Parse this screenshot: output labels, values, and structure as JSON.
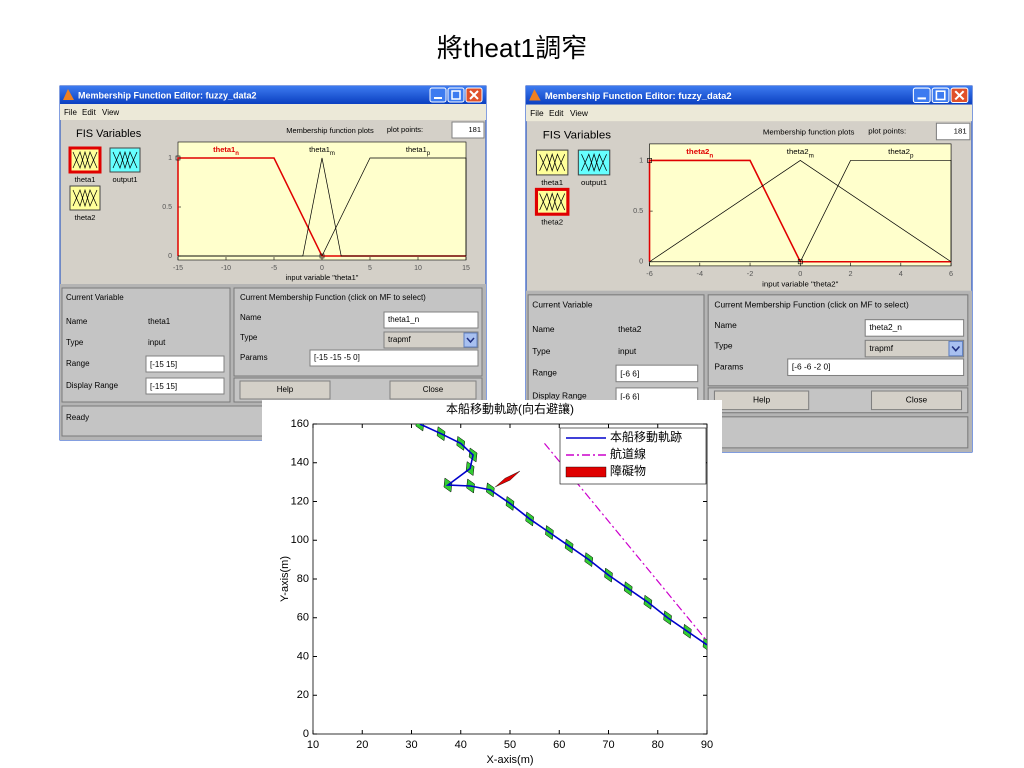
{
  "title": "將theat1調窄",
  "windows": [
    {
      "title": "Membership Function Editor: fuzzy_data2",
      "menu": [
        "File",
        "Edit",
        "View"
      ],
      "fis_variables_label": "FIS Variables",
      "variables": [
        "theta1",
        "output1",
        "theta2"
      ],
      "selected_variable": 0,
      "plot": {
        "heading": "Membership function plots",
        "plot_points_label": "plot points:",
        "plot_points": "181",
        "xlabel": "input variable \"theta1\"",
        "xlim": [
          -15,
          15
        ],
        "xticks": [
          -15,
          -10,
          -5,
          0,
          5,
          10,
          15
        ],
        "ylim": [
          0,
          1
        ],
        "yticks": [
          0,
          0.5,
          1
        ],
        "selected_mf": 0,
        "mfs": [
          {
            "name": {
              "base": "theta1",
              "sub": "n"
            },
            "type": "trapmf",
            "params": [
              -15,
              -15,
              -5,
              0
            ]
          },
          {
            "name": {
              "base": "theta1",
              "sub": "m"
            },
            "type": "trimf",
            "params": [
              -2,
              0,
              2
            ]
          },
          {
            "name": {
              "base": "theta1",
              "sub": "p"
            },
            "type": "trapmf",
            "params": [
              0,
              5,
              15,
              15
            ]
          }
        ]
      },
      "current_variable": {
        "heading": "Current Variable",
        "name_label": "Name",
        "name": "theta1",
        "type_label": "Type",
        "type": "input",
        "range_label": "Range",
        "range": "[-15 15]",
        "display_range_label": "Display Range",
        "display_range": "[-15 15]"
      },
      "current_mf": {
        "heading": "Current Membership Function (click on MF to select)",
        "name_label": "Name",
        "name": "theta1_n",
        "type_label": "Type",
        "type": "trapmf",
        "params_label": "Params",
        "params": "[-15 -15 -5 0]"
      },
      "buttons": [
        "Help",
        "Close"
      ],
      "status": "Ready"
    },
    {
      "title": "Membership Function Editor: fuzzy_data2",
      "menu": [
        "File",
        "Edit",
        "View"
      ],
      "fis_variables_label": "FIS Variables",
      "variables": [
        "theta1",
        "output1",
        "theta2"
      ],
      "selected_variable": 2,
      "plot": {
        "heading": "Membership function plots",
        "plot_points_label": "plot points:",
        "plot_points": "181",
        "xlabel": "input variable \"theta2\"",
        "xlim": [
          -6,
          6
        ],
        "xticks": [
          -6,
          -4,
          -2,
          0,
          2,
          4,
          6
        ],
        "ylim": [
          0,
          1
        ],
        "yticks": [
          0,
          0.5,
          1
        ],
        "selected_mf": 0,
        "mfs": [
          {
            "name": {
              "base": "theta2",
              "sub": "n"
            },
            "type": "trapmf",
            "params": [
              -6,
              -6,
              -2,
              0
            ]
          },
          {
            "name": {
              "base": "theta2",
              "sub": "m"
            },
            "type": "trimf",
            "params": [
              -6,
              0,
              6
            ]
          },
          {
            "name": {
              "base": "theta2",
              "sub": "p"
            },
            "type": "trapmf",
            "params": [
              0,
              2,
              6,
              6
            ]
          }
        ]
      },
      "current_variable": {
        "heading": "Current Variable",
        "name_label": "Name",
        "name": "theta2",
        "type_label": "Type",
        "type": "input",
        "range_label": "Range",
        "range": "[-6 6]",
        "display_range_label": "Display Range",
        "display_range": "[-6 6]"
      },
      "current_mf": {
        "heading": "Current Membership Function (click on MF to select)",
        "name_label": "Name",
        "name": "theta2_n",
        "type_label": "Type",
        "type": "trapmf",
        "params_label": "Params",
        "params": "[-6 -6 -2 0]"
      },
      "buttons": [
        "Help",
        "Close"
      ]
    }
  ],
  "chart_data": {
    "type": "line",
    "title": "本船移動軌跡(向右避讓)",
    "xlabel": "X-axis(m)",
    "ylabel": "Y-axis(m)",
    "xlim": [
      10,
      90
    ],
    "xticks": [
      10,
      20,
      30,
      40,
      50,
      60,
      70,
      80,
      90
    ],
    "ylim": [
      0,
      160
    ],
    "yticks": [
      0,
      20,
      40,
      60,
      80,
      100,
      120,
      140,
      160
    ],
    "legend": "upper right",
    "series": [
      {
        "name": "本船移動軌跡",
        "color": "#0000cc",
        "style": "solid",
        "x": [
          31.7,
          36,
          40,
          42.5,
          41.9,
          37.4,
          42,
          46,
          50,
          54,
          58,
          62,
          66,
          70,
          74,
          78,
          82,
          86,
          90
        ],
        "values": [
          160,
          155,
          150,
          144,
          137,
          128.5,
          128,
          126,
          119,
          111,
          104,
          97,
          90,
          82,
          75,
          68,
          60,
          53,
          46
        ]
      },
      {
        "name": "航道線",
        "color": "#cc00cc",
        "style": "dashdot",
        "x": [
          57,
          90
        ],
        "values": [
          150,
          48
        ]
      },
      {
        "name": "障礙物",
        "color": "#e00000",
        "style": "patch",
        "x": [
          47,
          49,
          52,
          50
        ],
        "values": [
          127.5,
          132,
          135.7,
          131
        ]
      }
    ]
  }
}
